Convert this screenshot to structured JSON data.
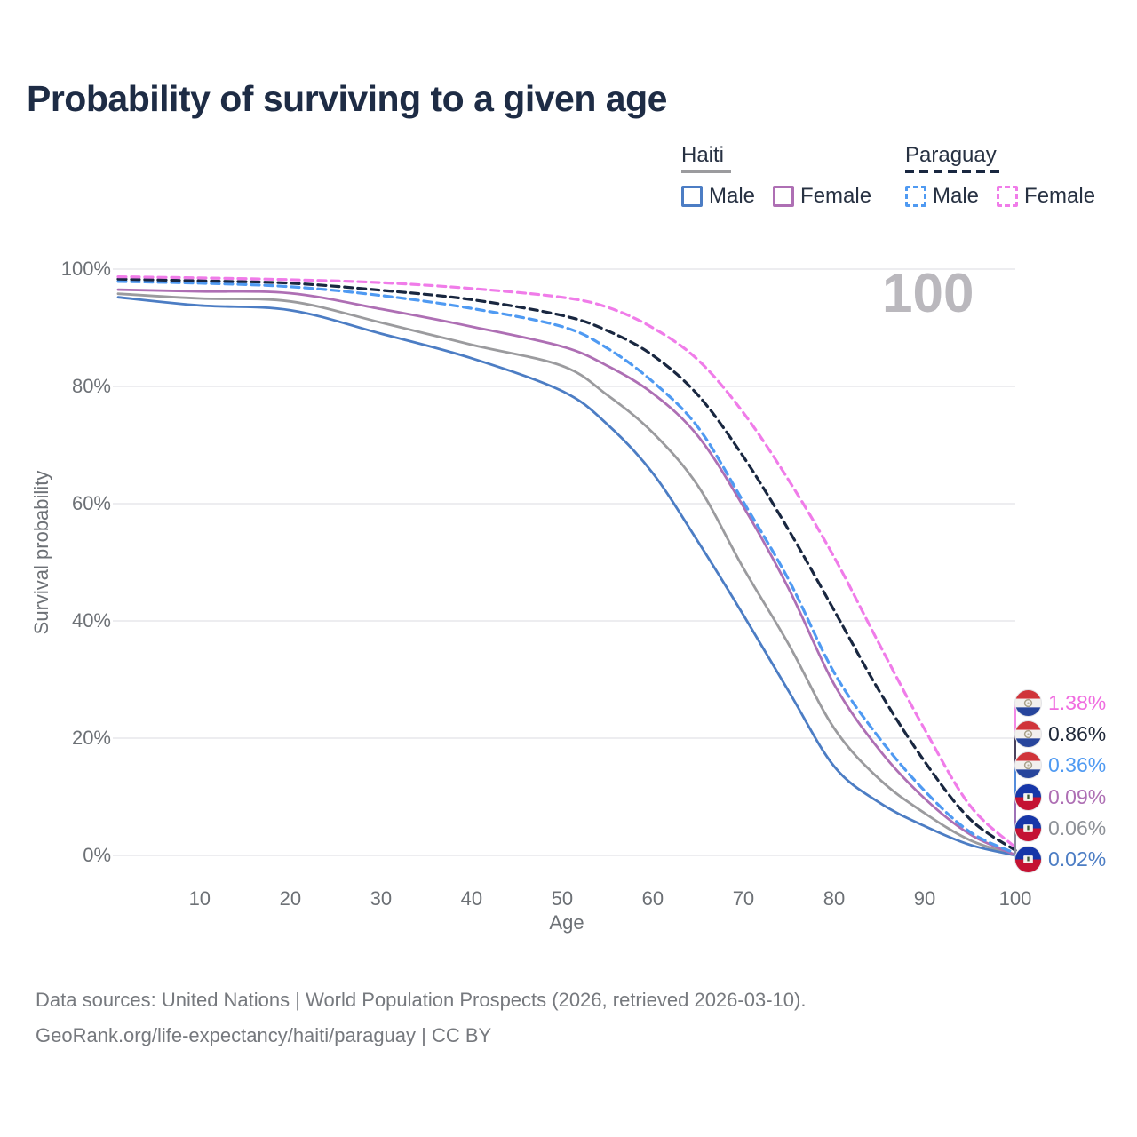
{
  "title": "Probability of surviving to a given age",
  "watermark": "100",
  "legend": {
    "groups": [
      {
        "country": "Haiti",
        "line_style": "solid",
        "underline_color": "#9b9b9e",
        "items": [
          {
            "label": "Male",
            "color": "#4c7dc4"
          },
          {
            "label": "Female",
            "color": "#ae6fb4"
          }
        ]
      },
      {
        "country": "Paraguay",
        "line_style": "dashed",
        "underline_color": "#192740",
        "items": [
          {
            "label": "Male",
            "color": "#4f9af2"
          },
          {
            "label": "Female",
            "color": "#f07ce9"
          }
        ]
      }
    ]
  },
  "axes": {
    "x_label": "Age",
    "y_label": "Survival probability",
    "x_ticks": [
      "10",
      "20",
      "30",
      "40",
      "50",
      "60",
      "70",
      "80",
      "90",
      "100"
    ],
    "y_ticks": [
      "0%",
      "20%",
      "40%",
      "60%",
      "80%",
      "100%"
    ]
  },
  "end_labels": [
    {
      "value": "1.38%",
      "color": "#f06ce0",
      "flag": "paraguay",
      "series": "Paraguay Female"
    },
    {
      "value": "0.86%",
      "color": "#20293a",
      "flag": "paraguay",
      "series": "Paraguay (both sexes)"
    },
    {
      "value": "0.36%",
      "color": "#4f9af2",
      "flag": "paraguay",
      "series": "Paraguay Male"
    },
    {
      "value": "0.09%",
      "color": "#ae6fb4",
      "flag": "haiti",
      "series": "Haiti Female"
    },
    {
      "value": "0.06%",
      "color": "#8d9197",
      "flag": "haiti",
      "series": "Haiti (both sexes)"
    },
    {
      "value": "0.02%",
      "color": "#4c7dc4",
      "flag": "haiti",
      "series": "Haiti Male"
    }
  ],
  "footer": {
    "line1": "Data sources: United Nations | World Population Prospects (2026, retrieved 2026-03-10).",
    "line2": "GeoRank.org/life-expectancy/haiti/paraguay | CC BY"
  },
  "chart_data": {
    "type": "line",
    "title": "Probability of surviving to a given age",
    "xlabel": "Age",
    "ylabel": "Survival probability",
    "xlim": [
      1,
      100
    ],
    "ylim": [
      0,
      100
    ],
    "grid": "horizontal",
    "legend_position": "top-right",
    "hovered_age": 100,
    "x": [
      1,
      10,
      20,
      30,
      40,
      50,
      55,
      60,
      65,
      70,
      75,
      80,
      85,
      90,
      95,
      100
    ],
    "series": [
      {
        "name": "Haiti Male",
        "country": "Haiti",
        "sex": "Male",
        "style": "solid",
        "color": "#4c7dc4",
        "end_value_pct": 0.02,
        "values": [
          95.2,
          93.8,
          93.0,
          89.0,
          84.8,
          79.2,
          73.5,
          65.2,
          53.5,
          41.0,
          28.0,
          15.2,
          9.0,
          5.0,
          1.8,
          0.02
        ]
      },
      {
        "name": "Haiti Female",
        "country": "Haiti",
        "sex": "Female",
        "style": "solid",
        "color": "#ae6fb4",
        "end_value_pct": 0.09,
        "values": [
          96.5,
          96.2,
          95.9,
          93.2,
          90.2,
          86.8,
          83.5,
          78.8,
          71.5,
          59.5,
          45.5,
          29.2,
          18.0,
          9.7,
          3.6,
          0.09
        ]
      },
      {
        "name": "Haiti (both sexes)",
        "country": "Haiti",
        "sex": "Both",
        "style": "solid",
        "color": "#9b9b9e",
        "end_value_pct": 0.06,
        "values": [
          95.8,
          95.0,
          94.5,
          90.9,
          87.1,
          83.5,
          78.5,
          72.1,
          63.0,
          49.0,
          36.0,
          21.7,
          13.0,
          7.2,
          2.6,
          0.06
        ]
      },
      {
        "name": "Paraguay Male",
        "country": "Paraguay",
        "sex": "Male",
        "style": "dashed",
        "color": "#4f9af2",
        "end_value_pct": 0.36,
        "values": [
          97.9,
          97.6,
          97.0,
          95.5,
          93.3,
          90.2,
          86.5,
          80.8,
          73.0,
          60.3,
          47.0,
          31.2,
          20.0,
          11.0,
          4.0,
          0.36
        ]
      },
      {
        "name": "Paraguay (both sexes)",
        "country": "Paraguay",
        "sex": "Both",
        "style": "dashed",
        "color": "#192740",
        "end_value_pct": 0.86,
        "values": [
          98.3,
          98.0,
          97.6,
          96.4,
          94.8,
          92.1,
          89.5,
          85.3,
          78.5,
          68.0,
          55.5,
          41.8,
          28.0,
          16.0,
          6.2,
          0.86
        ]
      },
      {
        "name": "Paraguay Female",
        "country": "Paraguay",
        "sex": "Female",
        "style": "dashed",
        "color": "#f07ce9",
        "end_value_pct": 1.38,
        "values": [
          98.7,
          98.5,
          98.2,
          97.7,
          96.7,
          95.2,
          93.5,
          90.0,
          84.5,
          75.5,
          64.0,
          50.9,
          36.0,
          21.5,
          8.5,
          1.38
        ]
      }
    ]
  }
}
